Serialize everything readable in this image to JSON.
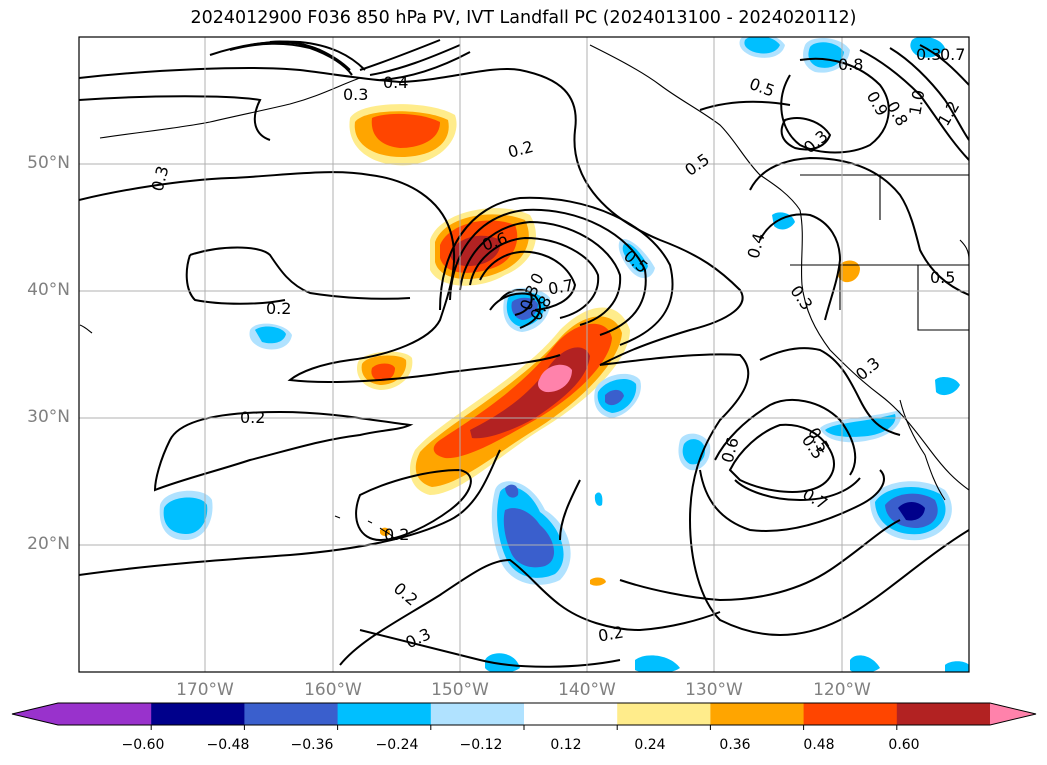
{
  "title": "2024012900 F036 850 hPa PV, IVT Landfall PC (2024013100 - 2024020112)",
  "map": {
    "lon_range": [
      -180,
      -110
    ],
    "lat_range": [
      10,
      60
    ],
    "lon_ticks": [
      "170°W",
      "160°W",
      "150°W",
      "140°W",
      "130°W",
      "120°W"
    ],
    "lat_ticks": [
      "50°N",
      "40°N",
      "30°N",
      "20°N"
    ],
    "gridlines": true,
    "contour_labels": [
      "0.3",
      "0.4",
      "0.3",
      "0.2",
      "0.3",
      "0.8",
      "0.7",
      "0.5",
      "0.9",
      "0.8",
      "1.0",
      "1.2",
      "0.3",
      "0.5",
      "0.6",
      "0.4",
      "0.5",
      "0.7",
      "0.3",
      "0",
      "0.8",
      "0.2",
      "0.3",
      "0.5",
      "0.3",
      "0.5",
      "0.2",
      "0.6",
      "0.5",
      "0.7",
      "0.2",
      "0.2",
      "0.3",
      "0.2"
    ]
  },
  "colorbar": {
    "colors": [
      "#9932cc",
      "#00008b",
      "#3a5fcd",
      "#00bfff",
      "#b0e2ff",
      "#ffffff",
      "#ffec8b",
      "#ffa500",
      "#ff4500",
      "#b22222",
      "#ff82ab",
      "#ff82ab"
    ],
    "tick_labels": [
      "−0.60",
      "−0.48",
      "−0.36",
      "−0.24",
      "−0.12",
      "0.12",
      "0.24",
      "0.36",
      "0.48",
      "0.60"
    ]
  }
}
